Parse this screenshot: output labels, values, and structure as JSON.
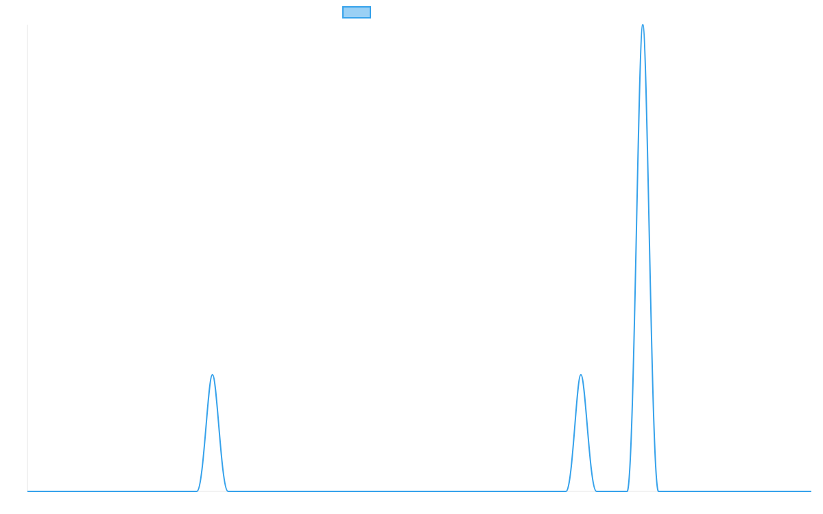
{
  "colors": {
    "line": "#36a2eb",
    "legend_fill": "#9ad0f5",
    "axis": "#e5e5e5",
    "background": "#ffffff"
  },
  "chart_data": {
    "type": "line",
    "title": "",
    "xlabel": "",
    "ylabel": "",
    "grid": false,
    "legend": {
      "position": "top",
      "entries": [
        {
          "label": ""
        }
      ]
    },
    "xlim": [
      0,
      100
    ],
    "ylim": [
      0,
      4
    ],
    "series": [
      {
        "x": [
          0,
          21.6,
          23.6,
          25.6,
          68.7,
          70.6,
          72.6,
          76.5,
          78.5,
          80.5,
          100
        ],
        "values": [
          0,
          0,
          1,
          0,
          0,
          1,
          0,
          0,
          4,
          0,
          0
        ],
        "smooth": "peaks"
      }
    ]
  }
}
